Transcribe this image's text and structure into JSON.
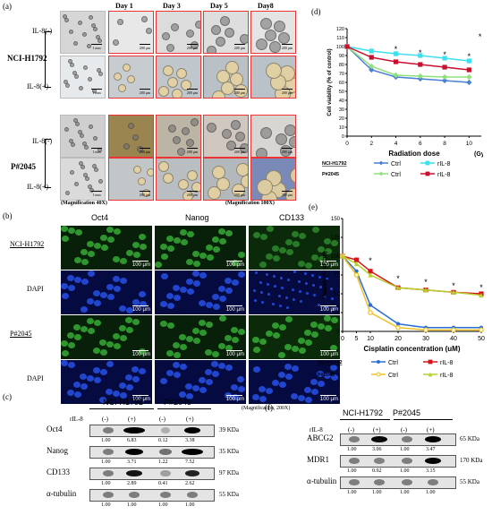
{
  "panel_a": {
    "label": "(a)",
    "lines": [
      "NCI-H1792",
      "P#2045"
    ],
    "conditions": [
      "IL-8(-)",
      "IL-8(+)"
    ],
    "days": [
      "Day 1",
      "Day 3",
      "Day 5",
      "Day8"
    ],
    "scale_first": "1 mm",
    "scale_other": "200 μm",
    "mag1": "(Magnification 40X)",
    "mag2": "(Magnification 100X)"
  },
  "panel_b": {
    "label": "(b)",
    "markers": [
      "Oct4",
      "Nanog",
      "CD133"
    ],
    "rows": [
      "NCI-H1792",
      "DAPI",
      "P#2045",
      "DAPI"
    ],
    "scale": "100 μm",
    "mag": "(Magnification, 200X)"
  },
  "panel_c": {
    "label": "(c)",
    "groups": [
      "NCI-H1792",
      "P#2045"
    ],
    "treat_label": "rIL-8",
    "treat": [
      "(-)",
      "(+)",
      "(-)",
      "(+)"
    ],
    "proteins": [
      {
        "name": "Oct4",
        "kda": "39 KDa",
        "values": [
          "1.00",
          "6.83",
          "0.12",
          "3.38"
        ]
      },
      {
        "name": "Nanog",
        "kda": "35 KDa",
        "values": [
          "1.00",
          "3.71",
          "1.22",
          "7.52"
        ]
      },
      {
        "name": "CD133",
        "kda": "97 KDa",
        "values": [
          "1.00",
          "2.89",
          "0.41",
          "2.62"
        ]
      },
      {
        "name": "α-tubulin",
        "kda": "55 KDa",
        "values": [
          "1.00",
          "1.00",
          "1.00",
          "1.00"
        ]
      }
    ]
  },
  "panel_f": {
    "label": "(f)",
    "groups": [
      "NCI-H1792",
      "P#2045"
    ],
    "treat_label": "rIL-8",
    "treat": [
      "(-)",
      "(+)",
      "(-)",
      "(+)"
    ],
    "proteins": [
      {
        "name": "ABCG2",
        "kda": "65 KDa",
        "values": [
          "1.00",
          "3.06",
          "1.00",
          "3.47"
        ]
      },
      {
        "name": "MDR1",
        "kda": "170 KDa",
        "values": [
          "1.00",
          "0.92",
          "1.00",
          "3.15"
        ]
      },
      {
        "name": "α-tubulin",
        "kda": "55 KDa",
        "values": [
          "1.00",
          "1.00",
          "1.00",
          "1.00"
        ]
      }
    ]
  },
  "chart_data": [
    {
      "panel": "(d)",
      "type": "line",
      "xlabel": "Radiation dose",
      "xunit": "(Gy)",
      "ylabel": "Cell viability (% of control)",
      "x": [
        0,
        2,
        4,
        6,
        8,
        10
      ],
      "xlim": [
        0,
        11
      ],
      "ylim": [
        0,
        120
      ],
      "yticks": [
        0,
        10,
        20,
        30,
        40,
        50,
        60,
        70,
        80,
        90,
        100,
        110,
        120
      ],
      "series": [
        {
          "name": "Ctrl",
          "group": "NCI-H1792",
          "color": "#4a7fd4",
          "marker": "diamond",
          "values": [
            100,
            74,
            66,
            64,
            62,
            60
          ]
        },
        {
          "name": "rIL-8",
          "group": "NCI-H1792",
          "color": "#3ee0f0",
          "marker": "square",
          "values": [
            100,
            95,
            92,
            90,
            87,
            84
          ]
        },
        {
          "name": "Ctrl",
          "group": "P#2045",
          "color": "#8fe07a",
          "marker": "diamond",
          "values": [
            100,
            78,
            68,
            67,
            66,
            66
          ]
        },
        {
          "name": "rIL-8",
          "group": "P#2045",
          "color": "#c8102e",
          "marker": "square",
          "values": [
            100,
            88,
            83,
            80,
            77,
            74
          ]
        }
      ],
      "annotations": [
        "*",
        "*",
        "*",
        "*",
        "*"
      ],
      "legend": "bottom",
      "legend_groups": [
        "NCI-H1792",
        "P#2045"
      ]
    },
    {
      "panel": "(e)",
      "type": "line",
      "xlabel": "Cisplatin concentration (uM)",
      "ylabel": "Viability  (% of Ctrl)",
      "x": [
        0,
        5,
        10,
        20,
        30,
        40,
        50
      ],
      "xlim": [
        0,
        50
      ],
      "ylim": [
        0,
        150
      ],
      "yticks": [
        0,
        25,
        50,
        75,
        100,
        125,
        150
      ],
      "series": [
        {
          "name": "Ctrl",
          "group": "NCI-H1792",
          "color": "#2a6fd6",
          "marker": "circle",
          "values": [
            100,
            80,
            35,
            10,
            5,
            5,
            5
          ]
        },
        {
          "name": "rIL-8",
          "group": "NCI-H1792",
          "color": "#d8141b",
          "marker": "square",
          "values": [
            100,
            95,
            80,
            58,
            55,
            52,
            50
          ]
        },
        {
          "name": "Ctrl",
          "group": "P#2045",
          "color": "#f0c020",
          "marker": "circle-open",
          "values": [
            100,
            75,
            25,
            5,
            2,
            2,
            2
          ]
        },
        {
          "name": "rIL-8",
          "group": "P#2045",
          "color": "#b8d02a",
          "marker": "triangle",
          "values": [
            100,
            90,
            75,
            58,
            55,
            52,
            48
          ]
        }
      ],
      "annotations": [
        "*",
        "*",
        "*",
        "*",
        "*"
      ],
      "legend": "bottom",
      "legend_groups": [
        "NCI-H1792",
        "P#2045"
      ]
    }
  ]
}
